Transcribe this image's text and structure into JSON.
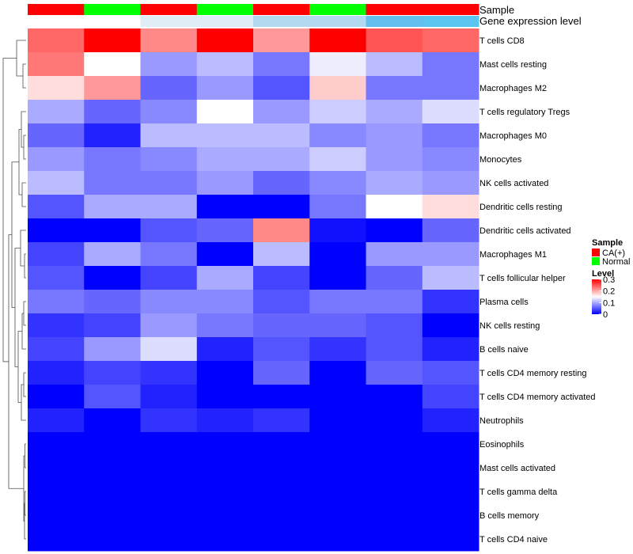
{
  "chart_data": {
    "type": "heatmap",
    "title": "",
    "annotation_tracks": [
      "Sample",
      "Gene expression level"
    ],
    "columns": [
      {
        "sample": "CA(+)",
        "expression_color": "#ffffff"
      },
      {
        "sample": "Normal",
        "expression_color": "#ffffff"
      },
      {
        "sample": "CA(+)",
        "expression_color": "#e0ecf6"
      },
      {
        "sample": "Normal",
        "expression_color": "#e0ecf6"
      },
      {
        "sample": "CA(+)",
        "expression_color": "#b3d9f0"
      },
      {
        "sample": "Normal",
        "expression_color": "#b3d9f0"
      },
      {
        "sample": "CA(+)",
        "expression_color": "#63c0ee"
      },
      {
        "sample": "CA(+)",
        "expression_color": "#5bc4ef"
      }
    ],
    "rows": [
      {
        "label": "T cells CD8",
        "values": [
          0.24,
          0.3,
          0.22,
          0.3,
          0.21,
          0.3,
          0.25,
          0.24
        ]
      },
      {
        "label": "Mast cells resting",
        "values": [
          0.23,
          0.15,
          0.09,
          0.11,
          0.07,
          0.14,
          0.11,
          0.07
        ]
      },
      {
        "label": "Macrophages M2",
        "values": [
          0.17,
          0.21,
          0.06,
          0.09,
          0.05,
          0.18,
          0.07,
          0.07
        ]
      },
      {
        "label": "T cells regulatory  Tregs",
        "values": [
          0.1,
          0.06,
          0.08,
          0.15,
          0.09,
          0.12,
          0.1,
          0.13
        ]
      },
      {
        "label": "Macrophages M0",
        "values": [
          0.06,
          0.02,
          0.11,
          0.11,
          0.11,
          0.08,
          0.09,
          0.07
        ]
      },
      {
        "label": "Monocytes",
        "values": [
          0.09,
          0.07,
          0.08,
          0.1,
          0.1,
          0.12,
          0.09,
          0.08
        ]
      },
      {
        "label": "NK cells activated",
        "values": [
          0.11,
          0.07,
          0.07,
          0.09,
          0.06,
          0.08,
          0.1,
          0.09
        ]
      },
      {
        "label": "Dendritic cells resting",
        "values": [
          0.05,
          0.1,
          0.1,
          0.0,
          0.0,
          0.07,
          0.15,
          0.17
        ]
      },
      {
        "label": "Dendritic cells activated",
        "values": [
          0.0,
          0.0,
          0.05,
          0.06,
          0.22,
          0.01,
          0.0,
          0.06
        ]
      },
      {
        "label": "Macrophages M1",
        "values": [
          0.04,
          0.1,
          0.07,
          0.0,
          0.11,
          0.0,
          0.09,
          0.09
        ]
      },
      {
        "label": "T cells follicular helper",
        "values": [
          0.05,
          0.0,
          0.04,
          0.1,
          0.04,
          0.0,
          0.06,
          0.11
        ]
      },
      {
        "label": "Plasma cells",
        "values": [
          0.07,
          0.06,
          0.08,
          0.08,
          0.05,
          0.07,
          0.07,
          0.03
        ]
      },
      {
        "label": "NK cells resting",
        "values": [
          0.03,
          0.04,
          0.09,
          0.07,
          0.06,
          0.06,
          0.05,
          0.0
        ]
      },
      {
        "label": "B cells naive",
        "values": [
          0.04,
          0.09,
          0.13,
          0.02,
          0.05,
          0.03,
          0.05,
          0.02
        ]
      },
      {
        "label": "T cells CD4 memory resting",
        "values": [
          0.02,
          0.04,
          0.03,
          0.0,
          0.06,
          0.0,
          0.06,
          0.05
        ]
      },
      {
        "label": "T cells CD4 memory activated",
        "values": [
          0.0,
          0.05,
          0.02,
          0.0,
          0.0,
          0.0,
          0.0,
          0.04
        ]
      },
      {
        "label": "Neutrophils",
        "values": [
          0.02,
          0.0,
          0.03,
          0.02,
          0.03,
          0.0,
          0.0,
          0.02
        ]
      },
      {
        "label": "Eosinophils",
        "values": [
          0.0,
          0.0,
          0.0,
          0.0,
          0.0,
          0.0,
          0.0,
          0.0
        ]
      },
      {
        "label": "Mast cells activated",
        "values": [
          0.0,
          0.0,
          0.0,
          0.0,
          0.0,
          0.0,
          0.0,
          0.0
        ]
      },
      {
        "label": "T cells gamma delta",
        "values": [
          0.0,
          0.0,
          0.0,
          0.0,
          0.0,
          0.0,
          0.0,
          0.0
        ]
      },
      {
        "label": "B cells memory",
        "values": [
          0.0,
          0.0,
          0.0,
          0.0,
          0.0,
          0.0,
          0.0,
          0.0
        ]
      },
      {
        "label": "T cells CD4 naive",
        "values": [
          0.0,
          0.0,
          0.0,
          0.0,
          0.0,
          0.0,
          0.0,
          0.0
        ]
      }
    ],
    "color_scale": {
      "min": 0,
      "max": 0.3,
      "low": "#0000ff",
      "mid": "#ffffff",
      "mid_value": 0.15,
      "high": "#ff0000"
    },
    "legend": {
      "sample_title": "Sample",
      "sample_entries": [
        {
          "label": "CA(+)",
          "color": "#ff0000"
        },
        {
          "label": "Normal",
          "color": "#00ff00"
        }
      ],
      "level_title": "Level",
      "level_ticks": [
        "0.3",
        "0.2",
        "0.1",
        "0"
      ],
      "level_tick_values": [
        0.3,
        0.2,
        0.1,
        0
      ]
    },
    "row_dendrogram": true,
    "placement": "legend right"
  }
}
